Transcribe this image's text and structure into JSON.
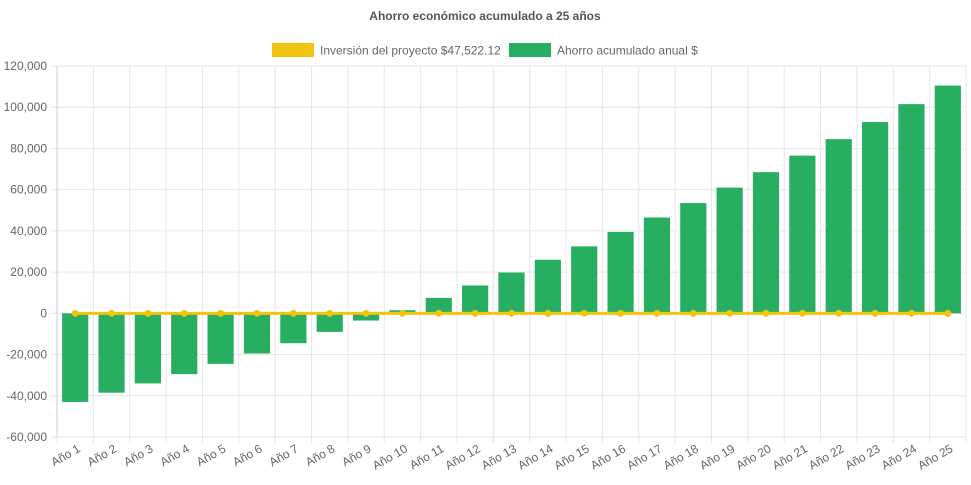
{
  "chart_data": {
    "type": "bar",
    "title": "Ahorro económico acumulado a 25 años",
    "legend_position": "top",
    "grid": true,
    "categories": [
      "Año 1",
      "Año 2",
      "Año 3",
      "Año 4",
      "Año 5",
      "Año 6",
      "Año 7",
      "Año 8",
      "Año 9",
      "Año 10",
      "Año 11",
      "Año 12",
      "Año 13",
      "Año 14",
      "Año 15",
      "Año 16",
      "Año 17",
      "Año 18",
      "Año 19",
      "Año 20",
      "Año 21",
      "Año 22",
      "Año 23",
      "Año 24",
      "Año 25"
    ],
    "ylim": [
      -60000,
      120000
    ],
    "yticks": [
      120000,
      100000,
      80000,
      60000,
      40000,
      20000,
      0,
      -20000,
      -40000,
      -60000
    ],
    "ytick_labels": [
      "120,000",
      "100,000",
      "80,000",
      "60,000",
      "40,000",
      "20,000",
      "0",
      "-20,000",
      "-40,000",
      "-60,000"
    ],
    "series": [
      {
        "name": "Inversión del proyecto $47,522.12",
        "type": "line",
        "color": "#f1c40f",
        "values": [
          0,
          0,
          0,
          0,
          0,
          0,
          0,
          0,
          0,
          0,
          0,
          0,
          0,
          0,
          0,
          0,
          0,
          0,
          0,
          0,
          0,
          0,
          0,
          0,
          0
        ]
      },
      {
        "name": "Ahorro acumulado anual $",
        "type": "bar",
        "color": "#27ae60",
        "values": [
          -43000,
          -38500,
          -34000,
          -29500,
          -24500,
          -19500,
          -14500,
          -9000,
          -3500,
          1500,
          7500,
          13500,
          19800,
          26000,
          32500,
          39500,
          46500,
          53500,
          61000,
          68500,
          76500,
          84500,
          92800,
          101500,
          110500
        ]
      }
    ]
  }
}
